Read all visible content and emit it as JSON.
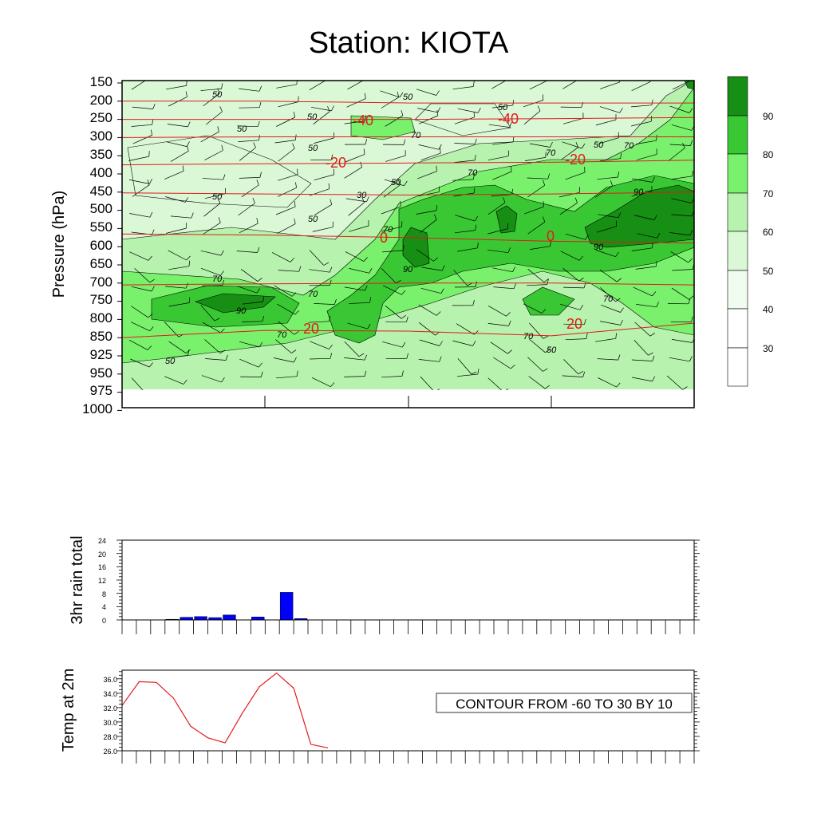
{
  "title": "Station: KIOTA",
  "colors": {
    "shade": [
      "#ffffff",
      "#f0fcef",
      "#daf8d5",
      "#b7f2ae",
      "#79f16c",
      "#39c833",
      "#178f14"
    ],
    "temp_contour": "#e31a1c",
    "rain_bar": "#0000ff",
    "temp_line": "#e31a1c"
  },
  "chart_data": [
    {
      "type": "heatmap",
      "panel": "cross-section",
      "ylabel": "Pressure (hPa)",
      "y_ticks": [
        "150",
        "200",
        "250",
        "300",
        "350",
        "400",
        "450",
        "500",
        "550",
        "600",
        "650",
        "700",
        "750",
        "800",
        "850",
        "925",
        "950",
        "975",
        "1000"
      ],
      "colorbar_levels": [
        30,
        40,
        50,
        60,
        70,
        80,
        90
      ],
      "colorbar_labels": [
        "30",
        "40",
        "50",
        "60",
        "70",
        "80",
        "90"
      ],
      "rh_contour_labels": [
        "50",
        "50",
        "50",
        "50",
        "50",
        "50",
        "50",
        "50",
        "50",
        "50",
        "50",
        "50",
        "70",
        "70",
        "70",
        "70",
        "70",
        "70",
        "70",
        "70",
        "70",
        "70",
        "90",
        "90",
        "90",
        "90",
        "30"
      ],
      "temp_contour_labels": [
        "-40",
        "-40",
        "-20",
        "-20",
        "0",
        "0",
        "20",
        "20"
      ],
      "temp_contours": [
        {
          "value": -50,
          "level_hPa": [
            200,
            200,
            205,
            205,
            205
          ]
        },
        {
          "value": -40,
          "level_hPa": [
            250,
            250,
            250,
            248,
            245
          ]
        },
        {
          "value": -30,
          "level_hPa": [
            300,
            298,
            298,
            298,
            298
          ]
        },
        {
          "value": -20,
          "level_hPa": [
            375,
            372,
            370,
            368,
            362
          ]
        },
        {
          "value": -10,
          "level_hPa": [
            452,
            455,
            458,
            455,
            450
          ]
        },
        {
          "value": 0,
          "level_hPa": [
            565,
            568,
            575,
            585,
            590
          ]
        },
        {
          "value": 10,
          "level_hPa": [
            705,
            702,
            700,
            700,
            705
          ]
        },
        {
          "value": 20,
          "level_hPa": [
            850,
            830,
            832,
            845,
            810
          ]
        }
      ]
    },
    {
      "type": "bar",
      "panel": "rain",
      "ylabel": "3hr rain total",
      "ylim": [
        0,
        24
      ],
      "y_ticks": [
        "0",
        "4",
        "8",
        "12",
        "16",
        "20",
        "24"
      ],
      "x_index": [
        0,
        1,
        2,
        3,
        4,
        5,
        6,
        7,
        8,
        9,
        10,
        11,
        12,
        13,
        14,
        15,
        16,
        17,
        18,
        19,
        20,
        21,
        22,
        23,
        24,
        25,
        26,
        27,
        28,
        29,
        30,
        31,
        32,
        33,
        34,
        35,
        36,
        37,
        38,
        39
      ],
      "values": [
        0,
        0,
        0,
        0.2,
        0.8,
        1.0,
        0.7,
        1.5,
        0,
        0.9,
        0,
        8.3,
        0.4,
        0,
        0,
        0,
        0,
        0,
        0,
        0,
        0,
        0,
        0,
        0,
        0,
        0,
        0,
        0,
        0,
        0,
        0,
        0,
        0,
        0,
        0,
        0,
        0,
        0,
        0,
        0
      ]
    },
    {
      "type": "line",
      "panel": "temperature",
      "ylabel": "Temp at 2m",
      "ylim": [
        26.0,
        37.2
      ],
      "y_ticks": [
        "26.0",
        "28.0",
        "30.0",
        "32.0",
        "34.0",
        "36.0"
      ],
      "x_index": [
        0,
        1,
        2,
        3,
        4,
        5,
        6,
        7,
        8,
        9,
        10,
        11,
        12
      ],
      "values": [
        32.3,
        35.6,
        35.5,
        33.3,
        29.4,
        27.8,
        27.1,
        31.2,
        34.9,
        36.8,
        34.7,
        26.9,
        26.4
      ],
      "annotation": "CONTOUR FROM -60 TO 30 BY 10"
    }
  ]
}
